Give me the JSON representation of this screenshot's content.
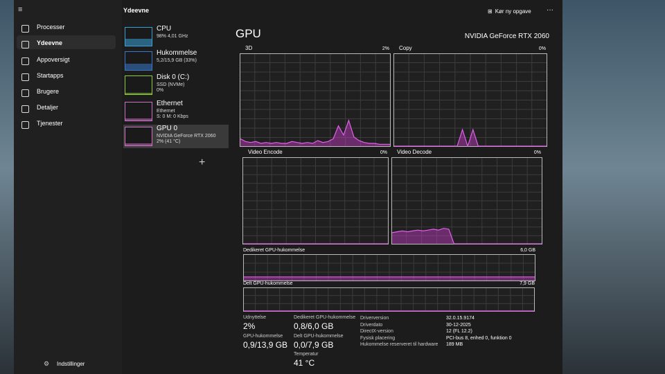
{
  "header": {
    "title": "Ydeevne",
    "run_task": "Kør ny opgave"
  },
  "nav": [
    "Processer",
    "Ydeevne",
    "Appoversigt",
    "Startapps",
    "Brugere",
    "Detaljer",
    "Tjenester"
  ],
  "settings": "Indstillinger",
  "devices": [
    {
      "name": "CPU",
      "lines": [
        "98% 4,01 GHz"
      ]
    },
    {
      "name": "Hukommelse",
      "lines": [
        "5,2/15,9 GB (33%)"
      ]
    },
    {
      "name": "Disk 0 (C:)",
      "lines": [
        "SSD (NVMe)",
        "0%"
      ]
    },
    {
      "name": "Ethernet",
      "lines": [
        "Ethernet",
        "S: 0 M: 0 Kbps"
      ]
    },
    {
      "name": "GPU 0",
      "lines": [
        "NVIDIA GeForce RTX 2060",
        "2% (41 °C)"
      ]
    }
  ],
  "gpu": {
    "title": "GPU",
    "model": "NVIDIA GeForce RTX 2060",
    "ylim": [
      0,
      100
    ],
    "graphs": [
      {
        "name": "3D",
        "value_label": "2%",
        "history": [
          8,
          5,
          4,
          5,
          3,
          4,
          3,
          4,
          3,
          3,
          5,
          4,
          3,
          4,
          3,
          6,
          4,
          5,
          8,
          22,
          12,
          28,
          10,
          6,
          4,
          3,
          3,
          2,
          2,
          2
        ]
      },
      {
        "name": "Copy",
        "value_label": "0%",
        "history": [
          0,
          0,
          0,
          0,
          0,
          0,
          0,
          0,
          0,
          0,
          0,
          0,
          0,
          18,
          0,
          18,
          0,
          0,
          0,
          0,
          0,
          0,
          0,
          0,
          0,
          0,
          0,
          0,
          0,
          0
        ]
      },
      {
        "name": "Video Encode",
        "value_label": "0%",
        "history": [
          0,
          0,
          0,
          0,
          0,
          0,
          0,
          0,
          0,
          0,
          0,
          0,
          0,
          0,
          0,
          0,
          0,
          0,
          0,
          0,
          0,
          0,
          0,
          0,
          0,
          0,
          0,
          0,
          0,
          0
        ]
      },
      {
        "name": "Video Decode",
        "value_label": "0%",
        "history": [
          13,
          14,
          15,
          14,
          15,
          16,
          15,
          16,
          17,
          16,
          18,
          17,
          0,
          0,
          0,
          0,
          0,
          0,
          0,
          0,
          0,
          0,
          0,
          0,
          0,
          0,
          0,
          0,
          0,
          0
        ]
      }
    ],
    "memory": [
      {
        "name": "Dedikeret GPU-hukommelse",
        "max": "6,0 GB",
        "history": [
          14,
          14,
          14,
          14,
          14,
          14,
          14,
          14,
          14,
          14,
          14,
          14,
          14,
          14,
          14,
          14,
          14,
          14,
          14,
          14,
          14,
          14,
          14,
          14,
          14,
          14,
          14,
          14,
          14,
          14
        ]
      },
      {
        "name": "Delt GPU-hukommelse",
        "max": "7,9 GB",
        "history": [
          0,
          0,
          0,
          0,
          0,
          0,
          0,
          0,
          0,
          0,
          0,
          0,
          0,
          0,
          0,
          0,
          0,
          0,
          0,
          0,
          0,
          0,
          0,
          0,
          0,
          0,
          0,
          0,
          0,
          0
        ]
      }
    ],
    "stats": [
      {
        "label": "Udnyttelse",
        "value": "2%"
      },
      {
        "label": "Dedikeret GPU-hukommelse",
        "value": "0,8/6,0 GB"
      },
      {
        "label": "GPU-hukommelse",
        "value": "0,9/13,9 GB"
      },
      {
        "label": "Delt GPU-hukommelse",
        "value": "0,0/7,9 GB"
      },
      {
        "label": "Temperatur",
        "value": "41 °C"
      }
    ],
    "details": [
      {
        "label": "Driverversion",
        "value": "32.0.15.9174"
      },
      {
        "label": "Driverdato",
        "value": "30-12-2025"
      },
      {
        "label": "DirectX-version",
        "value": "12 (FL 12.2)"
      },
      {
        "label": "Fysisk placering",
        "value": "PCI-bus 8, enhed 0, funktion 0"
      },
      {
        "label": "Hukommelse reserveret til hardware",
        "value": "189 MB"
      }
    ]
  }
}
